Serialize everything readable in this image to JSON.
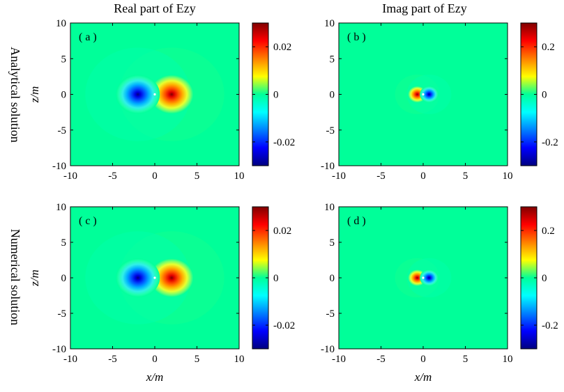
{
  "figure": {
    "col_titles": [
      "Real part of Ezy",
      "Imag part of Ezy"
    ],
    "row_titles": [
      "Analytical solution",
      "Numerical solution"
    ],
    "xlabel": "x/m",
    "ylabel": "z/m"
  },
  "colors": {
    "background": "#00ff99",
    "colormap": "jet"
  },
  "chart_data": [
    {
      "type": "heatmap",
      "panel_label": "( a )",
      "title": "Real part of Ezy",
      "xlabel": "",
      "ylabel": "z/m",
      "xlim": [
        -10,
        10
      ],
      "ylim": [
        -10,
        10
      ],
      "xticks": [
        "-10",
        "-5",
        "0",
        "5",
        "10"
      ],
      "yticks": [
        "10",
        "5",
        "0",
        "-5",
        "-10"
      ],
      "clim": [
        -0.03,
        0.03
      ],
      "colorbar_ticks": [
        "0.02",
        "0",
        "-0.02"
      ],
      "colorbar_tick_values": [
        0.02,
        0,
        -0.02
      ],
      "pattern": "dipole",
      "positive_lobe_x": 2,
      "negative_lobe_x": -2,
      "lobe_width": 2.6
    },
    {
      "type": "heatmap",
      "panel_label": "( b )",
      "title": "Imag part of Ezy",
      "xlabel": "",
      "ylabel": "",
      "xlim": [
        -10,
        10
      ],
      "ylim": [
        -10,
        10
      ],
      "xticks": [
        "-10",
        "-5",
        "0",
        "5",
        "10"
      ],
      "yticks": [
        "10",
        "5",
        "0",
        "-5",
        "-10"
      ],
      "clim": [
        -0.3,
        0.3
      ],
      "colorbar_ticks": [
        "0.2",
        "0",
        "-0.2"
      ],
      "colorbar_tick_values": [
        0.2,
        0,
        -0.2
      ],
      "pattern": "dipole",
      "positive_lobe_x": -0.7,
      "negative_lobe_x": 0.7,
      "lobe_width": 1.1
    },
    {
      "type": "heatmap",
      "panel_label": "( c )",
      "title": "",
      "xlabel": "x/m",
      "ylabel": "z/m",
      "xlim": [
        -10,
        10
      ],
      "ylim": [
        -10,
        10
      ],
      "xticks": [
        "-10",
        "-5",
        "0",
        "5",
        "10"
      ],
      "yticks": [
        "10",
        "5",
        "0",
        "-5",
        "-10"
      ],
      "clim": [
        -0.03,
        0.03
      ],
      "colorbar_ticks": [
        "0.02",
        "0",
        "-0.02"
      ],
      "colorbar_tick_values": [
        0.02,
        0,
        -0.02
      ],
      "pattern": "dipole",
      "positive_lobe_x": 2,
      "negative_lobe_x": -2,
      "lobe_width": 2.6
    },
    {
      "type": "heatmap",
      "panel_label": "( d )",
      "title": "",
      "xlabel": "x/m",
      "ylabel": "",
      "xlim": [
        -10,
        10
      ],
      "ylim": [
        -10,
        10
      ],
      "xticks": [
        "-10",
        "-5",
        "0",
        "5",
        "10"
      ],
      "yticks": [
        "10",
        "5",
        "0",
        "-5",
        "-10"
      ],
      "clim": [
        -0.3,
        0.3
      ],
      "colorbar_ticks": [
        "0.2",
        "0",
        "-0.2"
      ],
      "colorbar_tick_values": [
        0.2,
        0,
        -0.2
      ],
      "pattern": "dipole",
      "positive_lobe_x": -0.7,
      "negative_lobe_x": 0.7,
      "lobe_width": 1.1
    }
  ]
}
